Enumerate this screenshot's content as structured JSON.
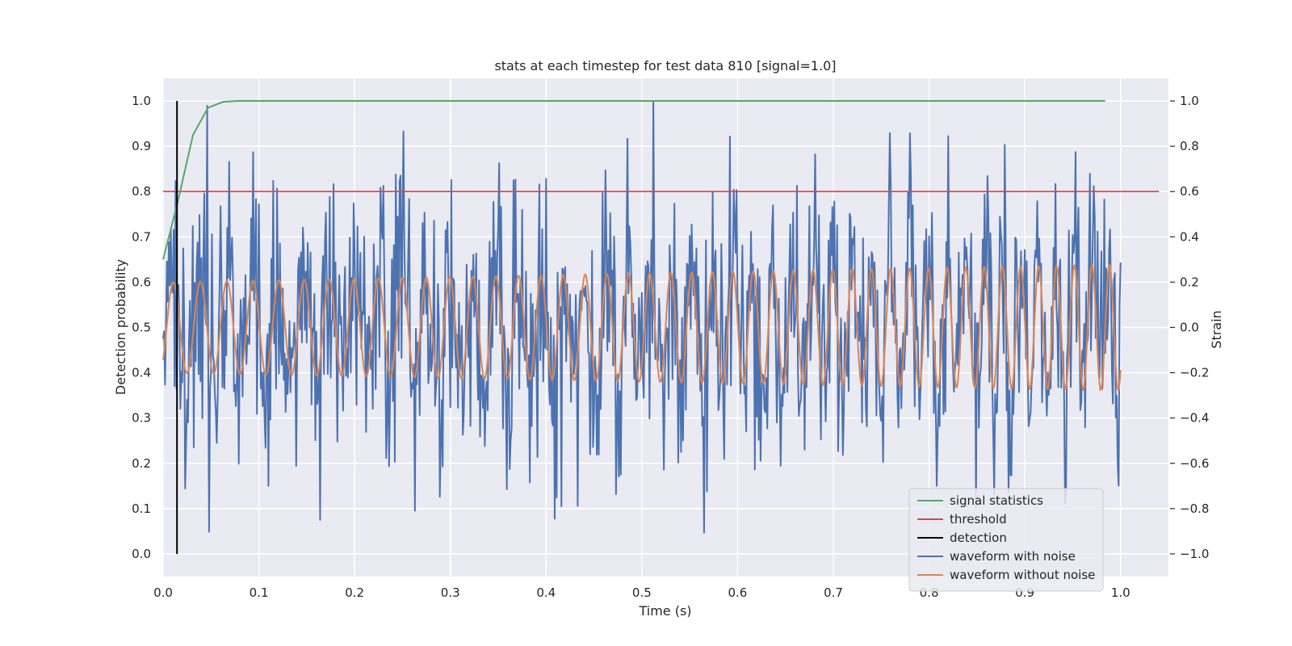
{
  "chart_data": {
    "type": "line",
    "title": "stats at each timestep for test data 810 [signal=1.0]",
    "xlabel": "Time (s)",
    "ylabel": "Detection probability",
    "y2label": "Strain",
    "xlim": [
      0.0,
      1.05
    ],
    "ylim": [
      -0.05,
      1.05
    ],
    "y2lim": [
      -1.1,
      1.1
    ],
    "xticks": [
      "0.0",
      "0.1",
      "0.2",
      "0.3",
      "0.4",
      "0.5",
      "0.6",
      "0.7",
      "0.8",
      "0.9",
      "1.0"
    ],
    "yticks": [
      "0.0",
      "0.1",
      "0.2",
      "0.3",
      "0.4",
      "0.5",
      "0.6",
      "0.7",
      "0.8",
      "0.9",
      "1.0"
    ],
    "y2ticks": [
      "−1.0",
      "−0.8",
      "−0.6",
      "−0.4",
      "−0.2",
      "0.0",
      "0.2",
      "0.4",
      "0.6",
      "0.8",
      "1.0"
    ],
    "grid": true,
    "legend_position": "lower-right",
    "colors": {
      "signal": "#55a868",
      "threshold": "#c44e52",
      "detection": "#000000",
      "noisy": "#4c72b0",
      "clean": "#dd8452",
      "plot_bg": "#eaeaf2",
      "grid": "#ffffff"
    },
    "series": [
      {
        "name": "signal statistics",
        "axis": "left",
        "x": [
          0.0,
          0.0156,
          0.0312,
          0.0469,
          0.0625,
          0.0781,
          0.125,
          0.25,
          0.5,
          0.75,
          0.984
        ],
        "y": [
          0.65,
          0.78,
          0.925,
          0.985,
          0.998,
          1.0,
          1.0,
          1.0,
          1.0,
          1.0,
          1.0
        ]
      },
      {
        "name": "threshold",
        "axis": "left",
        "x": [
          0.0,
          1.04
        ],
        "y": [
          0.8,
          0.8
        ]
      },
      {
        "name": "detection",
        "axis": "left",
        "x": [
          0.0145,
          0.0145
        ],
        "y": [
          0.0,
          1.0
        ]
      },
      {
        "name": "waveform with noise",
        "axis": "right",
        "description_range": [
          -1.0,
          1.0
        ],
        "n_points": 1000
      },
      {
        "name": "waveform without noise",
        "axis": "right",
        "amplitude_start": 0.2,
        "amplitude_end": 0.28,
        "frequency_start_hz": 35,
        "frequency_end_hz": 55
      }
    ]
  },
  "legend": {
    "items": [
      {
        "label": "signal statistics",
        "color": "#55a868"
      },
      {
        "label": "threshold",
        "color": "#c44e52"
      },
      {
        "label": "detection",
        "color": "#000000"
      },
      {
        "label": "waveform with noise",
        "color": "#4c72b0"
      },
      {
        "label": "waveform without noise",
        "color": "#dd8452"
      }
    ]
  }
}
